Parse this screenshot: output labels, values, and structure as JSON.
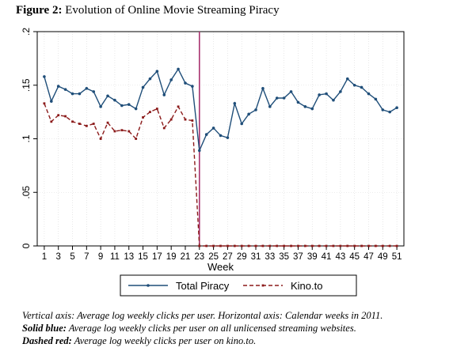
{
  "figure": {
    "label": "Figure 2:",
    "title": "Evolution of Online Movie Streaming Piracy"
  },
  "caption": {
    "line1": "Vertical axis: Average log weekly clicks per user. Horizontal axis: Calendar weeks in 2011.",
    "line2_label": "Solid blue:",
    "line2_text": "Average log weekly clicks per user on all unlicensed streaming websites.",
    "line3_label": "Dashed red:",
    "line3_text": "Average log weekly clicks per user on kino.to."
  },
  "colors": {
    "total_piracy": "#1f4e79",
    "kino": "#8b1a1a",
    "vline": "#a8326e",
    "grid": "#d8d8d8"
  },
  "chart_data": {
    "type": "line",
    "xlabel": "Week",
    "ylabel": "",
    "xlim": [
      0,
      52
    ],
    "ylim": [
      0,
      0.2
    ],
    "x_ticks": [
      1,
      3,
      5,
      7,
      9,
      11,
      13,
      15,
      17,
      19,
      21,
      23,
      25,
      27,
      29,
      31,
      33,
      35,
      37,
      39,
      41,
      43,
      45,
      47,
      49,
      51
    ],
    "y_ticks": [
      0,
      0.05,
      0.1,
      0.15,
      0.2
    ],
    "y_tick_labels": [
      "0",
      ".05",
      ".1",
      ".15",
      ".2"
    ],
    "vertical_line_x": 23,
    "grid": true,
    "legend_placement": "bottom",
    "x": [
      1,
      2,
      3,
      4,
      5,
      6,
      7,
      8,
      9,
      10,
      11,
      12,
      13,
      14,
      15,
      16,
      17,
      18,
      19,
      20,
      21,
      22,
      23,
      24,
      25,
      26,
      27,
      28,
      29,
      30,
      31,
      32,
      33,
      34,
      35,
      36,
      37,
      38,
      39,
      40,
      41,
      42,
      43,
      44,
      45,
      46,
      47,
      48,
      49,
      50,
      51
    ],
    "series": [
      {
        "name": "Total Piracy",
        "style": "solid",
        "values": [
          0.158,
          0.135,
          0.149,
          0.146,
          0.142,
          0.142,
          0.147,
          0.144,
          0.13,
          0.14,
          0.136,
          0.131,
          0.132,
          0.128,
          0.148,
          0.156,
          0.163,
          0.141,
          0.155,
          0.165,
          0.152,
          0.149,
          0.089,
          0.104,
          0.11,
          0.103,
          0.101,
          0.133,
          0.114,
          0.123,
          0.127,
          0.147,
          0.13,
          0.138,
          0.138,
          0.144,
          0.134,
          0.13,
          0.128,
          0.141,
          0.142,
          0.136,
          0.144,
          0.156,
          0.15,
          0.148,
          0.142,
          0.137,
          0.127,
          0.125,
          0.129
        ]
      },
      {
        "name": "Kino.to",
        "style": "dashed",
        "values": [
          0.133,
          0.116,
          0.122,
          0.121,
          0.116,
          0.114,
          0.112,
          0.114,
          0.1,
          0.115,
          0.107,
          0.108,
          0.107,
          0.1,
          0.12,
          0.125,
          0.128,
          0.11,
          0.118,
          0.13,
          0.118,
          0.117,
          0,
          0,
          0,
          0,
          0,
          0,
          0,
          0,
          0,
          0,
          0,
          0,
          0,
          0,
          0,
          0,
          0,
          0,
          0,
          0,
          0,
          0,
          0,
          0,
          0,
          0,
          0,
          0,
          0
        ]
      }
    ]
  }
}
